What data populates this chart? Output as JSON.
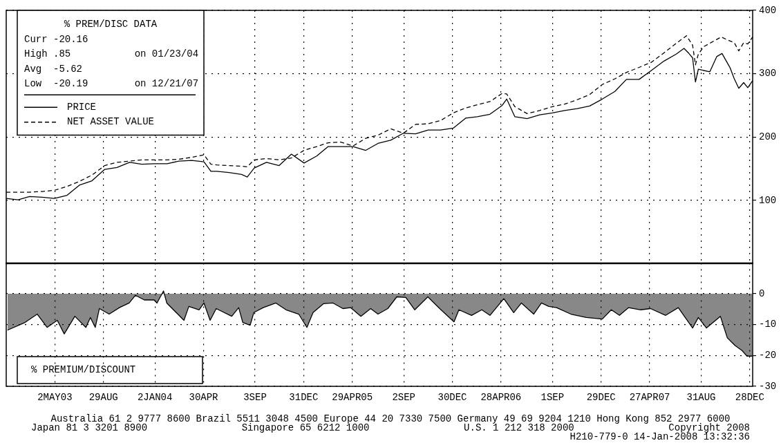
{
  "chart_data": [
    {
      "type": "line",
      "legend": "top left",
      "grid": true,
      "tick_labels": "y",
      "annotations": [
        "% PREM/DISC DATA",
        "Curr -20.16",
        "High .85           on 01/23/04",
        "Avg  -5.62",
        "Low  -20.19        on 12/21/07"
      ],
      "xlim": [
        "2003-01-03",
        "2008-01-04"
      ],
      "xticks": [
        {
          "value": "2003-05-02",
          "label": null
        },
        {
          "value": "2003-08-29",
          "label": null
        },
        {
          "value": "2004-01-02",
          "label": null
        },
        {
          "value": "2004-04-30",
          "label": null
        },
        {
          "value": "2004-09-03",
          "label": null
        },
        {
          "value": "2004-12-31",
          "label": null
        },
        {
          "value": "2005-04-29",
          "label": null
        },
        {
          "value": "2005-09-02",
          "label": null
        },
        {
          "value": "2005-12-30",
          "label": null
        },
        {
          "value": "2006-04-28",
          "label": null
        },
        {
          "value": "2006-09-01",
          "label": null
        },
        {
          "value": "2006-12-29",
          "label": null
        },
        {
          "value": "2007-04-27",
          "label": null
        },
        {
          "value": "2007-08-31",
          "label": null
        },
        {
          "value": "2007-12-28",
          "label": null
        }
      ],
      "ylim": [
        0,
        400
      ],
      "yticks": [
        100,
        200,
        300,
        400
      ],
      "series": [
        {
          "name": "PRICE",
          "color": "#000000",
          "line_style": "solid",
          "x": [
            "2003-01-03",
            "2003-02-01",
            "2003-03-01",
            "2003-04-01",
            "2003-05-01",
            "2003-06-01",
            "2003-07-01",
            "2003-08-01",
            "2003-09-01",
            "2003-10-01",
            "2003-11-01",
            "2003-12-01",
            "2004-01-01",
            "2004-02-01",
            "2004-03-01",
            "2004-04-01",
            "2004-05-01",
            "2004-05-18",
            "2004-06-01",
            "2004-07-01",
            "2004-08-01",
            "2004-08-15",
            "2004-09-01",
            "2004-10-01",
            "2004-11-01",
            "2004-12-01",
            "2005-01-01",
            "2005-02-01",
            "2005-03-01",
            "2005-04-01",
            "2005-05-01",
            "2005-06-01",
            "2005-07-01",
            "2005-08-01",
            "2005-09-01",
            "2005-10-01",
            "2005-11-01",
            "2005-12-01",
            "2006-01-01",
            "2006-02-01",
            "2006-03-01",
            "2006-04-01",
            "2006-05-01",
            "2006-05-12",
            "2006-06-01",
            "2006-07-01",
            "2006-08-01",
            "2006-09-01",
            "2006-10-01",
            "2006-11-01",
            "2006-12-01",
            "2007-01-01",
            "2007-02-01",
            "2007-03-01",
            "2007-04-01",
            "2007-05-01",
            "2007-06-01",
            "2007-07-01",
            "2007-07-20",
            "2007-08-01",
            "2007-08-10",
            "2007-08-17",
            "2007-08-24",
            "2007-09-21",
            "2007-10-08",
            "2007-10-21",
            "2007-11-10",
            "2007-11-20",
            "2007-12-01",
            "2007-12-13",
            "2007-12-23",
            "2008-01-04"
          ],
          "values": [
            103,
            101,
            106,
            105,
            103,
            108,
            124,
            131,
            149,
            152,
            160,
            157,
            158,
            158,
            162,
            163,
            161,
            146,
            146,
            144,
            141,
            137,
            151,
            160,
            155,
            173,
            159,
            170,
            185,
            185,
            185,
            179,
            190,
            195,
            206,
            205,
            211,
            211,
            214,
            230,
            232,
            236,
            250,
            260,
            232,
            229,
            235,
            238,
            242,
            245,
            249,
            260,
            272,
            291,
            291,
            305,
            320,
            331,
            340,
            332,
            325,
            287,
            307,
            303,
            327,
            332,
            309,
            292,
            277,
            286,
            278,
            289
          ]
        },
        {
          "name": "NET ASSET VALUE",
          "color": "#000000",
          "line_style": "dashed",
          "x": [
            "2003-01-03",
            "2003-02-01",
            "2003-03-01",
            "2003-04-01",
            "2003-05-01",
            "2003-06-01",
            "2003-07-01",
            "2003-08-01",
            "2003-09-01",
            "2003-10-01",
            "2003-11-01",
            "2003-12-01",
            "2004-01-01",
            "2004-02-01",
            "2004-03-01",
            "2004-04-01",
            "2004-05-01",
            "2004-05-18",
            "2004-06-01",
            "2004-07-01",
            "2004-08-01",
            "2004-08-15",
            "2004-09-01",
            "2004-10-01",
            "2004-11-01",
            "2004-12-01",
            "2005-01-01",
            "2005-02-01",
            "2005-03-01",
            "2005-04-01",
            "2005-05-01",
            "2005-06-01",
            "2005-07-01",
            "2005-08-01",
            "2005-09-01",
            "2005-10-01",
            "2005-11-01",
            "2005-12-01",
            "2006-01-01",
            "2006-02-01",
            "2006-03-01",
            "2006-04-01",
            "2006-05-01",
            "2006-05-12",
            "2006-06-01",
            "2006-07-01",
            "2006-08-01",
            "2006-09-01",
            "2006-10-01",
            "2006-11-01",
            "2006-12-01",
            "2007-01-01",
            "2007-02-01",
            "2007-03-01",
            "2007-04-01",
            "2007-05-01",
            "2007-06-01",
            "2007-07-01",
            "2007-07-26",
            "2007-08-10",
            "2007-08-17",
            "2007-08-24",
            "2007-09-07",
            "2007-10-19",
            "2007-11-01",
            "2007-11-20",
            "2007-12-01",
            "2007-12-13",
            "2007-12-23",
            "2008-01-04"
          ],
          "values": [
            113,
            113,
            113,
            114,
            116,
            122,
            130,
            140,
            155,
            160,
            162,
            164,
            164,
            164,
            165,
            168,
            172,
            157,
            156,
            155,
            154,
            153,
            164,
            166,
            164,
            167,
            179,
            185,
            191,
            192,
            186,
            198,
            203,
            213,
            206,
            220,
            221,
            226,
            238,
            246,
            251,
            256,
            269,
            268,
            248,
            237,
            242,
            248,
            252,
            259,
            267,
            283,
            292,
            302,
            310,
            318,
            333,
            348,
            360,
            345,
            314,
            331,
            343,
            358,
            354,
            349,
            336,
            349,
            347,
            358
          ]
        }
      ]
    },
    {
      "type": "area",
      "grid": true,
      "annotations": [
        "% PREMIUM/DISCOUNT",
        "Australia 61 2 9777 8600 Brazil 5511 3048 4500 Europe 44 20 7330 7500 Germany 49 69 9204 1210 Hong Kong 852 2977 6000",
        "Japan 81 3 3201 8900",
        "Singapore 65 6212 1000",
        "U.S. 1 212 318 2000",
        "Copyright 2008",
        "H210-779-0 14-Jan-2008 13:32:36"
      ],
      "xlim": [
        "2003-01-03",
        "2008-01-04"
      ],
      "xticks": [
        {
          "value": "2003-05-02",
          "label": "2MAY03"
        },
        {
          "value": "2003-08-29",
          "label": "29AUG"
        },
        {
          "value": "2004-01-02",
          "label": "2JAN04"
        },
        {
          "value": "2004-04-30",
          "label": "30APR"
        },
        {
          "value": "2004-09-03",
          "label": "3SEP"
        },
        {
          "value": "2004-12-31",
          "label": "31DEC"
        },
        {
          "value": "2005-04-29",
          "label": "29APR05"
        },
        {
          "value": "2005-09-02",
          "label": "2SEP"
        },
        {
          "value": "2005-12-30",
          "label": "30DEC"
        },
        {
          "value": "2006-04-28",
          "label": "28APR06"
        },
        {
          "value": "2006-09-01",
          "label": "1SEP"
        },
        {
          "value": "2006-12-29",
          "label": "29DEC"
        },
        {
          "value": "2007-04-27",
          "label": "27APR07"
        },
        {
          "value": "2007-08-31",
          "label": "31AUG"
        },
        {
          "value": "2007-12-28",
          "label": "28DEC"
        }
      ],
      "ylim": [
        -30,
        10
      ],
      "yticks": [
        0,
        -10,
        -20,
        -30
      ],
      "series": [
        {
          "color": "#000000",
          "x": [
            "2003-01-06",
            "2003-02-18",
            "2003-03-20",
            "2003-04-13",
            "2003-05-08",
            "2003-05-25",
            "2003-06-20",
            "2003-07-17",
            "2003-07-28",
            "2003-08-09",
            "2003-08-19",
            "2003-09-12",
            "2003-10-07",
            "2003-10-31",
            "2003-11-15",
            "2003-12-07",
            "2003-12-31",
            "2004-01-07",
            "2004-01-23",
            "2004-01-31",
            "2004-02-27",
            "2004-03-13",
            "2004-03-25",
            "2004-04-19",
            "2004-05-01",
            "2004-05-16",
            "2004-05-31",
            "2004-07-08",
            "2004-07-25",
            "2004-08-04",
            "2004-08-22",
            "2004-08-31",
            "2004-09-23",
            "2004-10-24",
            "2004-11-18",
            "2004-12-19",
            "2005-01-08",
            "2005-01-23",
            "2005-02-18",
            "2005-03-13",
            "2005-04-06",
            "2005-04-25",
            "2005-05-20",
            "2005-06-13",
            "2005-07-01",
            "2005-07-25",
            "2005-08-16",
            "2005-09-07",
            "2005-09-29",
            "2005-10-31",
            "2005-11-29",
            "2006-01-03",
            "2006-01-15",
            "2006-02-15",
            "2006-03-12",
            "2006-04-01",
            "2006-05-05",
            "2006-05-29",
            "2006-06-17",
            "2006-07-17",
            "2006-08-05",
            "2006-08-23",
            "2006-09-11",
            "2006-10-16",
            "2006-11-23",
            "2007-01-01",
            "2007-01-23",
            "2007-02-12",
            "2007-03-06",
            "2007-04-05",
            "2007-04-29",
            "2007-06-05",
            "2007-07-06",
            "2007-08-10",
            "2007-08-24",
            "2007-09-13",
            "2007-10-17",
            "2007-11-03",
            "2007-11-22",
            "2007-12-09",
            "2007-12-21",
            "2008-01-03"
          ],
          "values": [
            -11.8,
            -9.3,
            -6.6,
            -10.9,
            -8.6,
            -13,
            -7.3,
            -10.9,
            -7.7,
            -10.9,
            -4.8,
            -6.6,
            -4.5,
            -3,
            -0.5,
            -2,
            -2,
            -3,
            0.9,
            -3,
            -6.6,
            -8.6,
            -4.1,
            -5.2,
            -3,
            -8.6,
            -4.8,
            -7.3,
            -4.5,
            -9.3,
            -10.2,
            -6.1,
            -4.5,
            -3,
            -5.2,
            -6.6,
            -10.9,
            -6.1,
            -3.2,
            -3,
            -4.8,
            -4.5,
            -7.3,
            -4.8,
            -6.6,
            -4.8,
            -1,
            -1.2,
            -5.2,
            -1,
            -4.8,
            -9.1,
            -5.2,
            -7,
            -5.2,
            -7,
            -1.6,
            -6.1,
            -3,
            -6.6,
            -3,
            -4.1,
            -4.5,
            -6.6,
            -7.7,
            -8.2,
            -5.2,
            -7,
            -4.5,
            -5.2,
            -4.8,
            -7,
            -4.5,
            -11.1,
            -7.7,
            -11.1,
            -7.3,
            -14.3,
            -16.8,
            -18.4,
            -20.2,
            -20.2
          ]
        }
      ]
    }
  ]
}
